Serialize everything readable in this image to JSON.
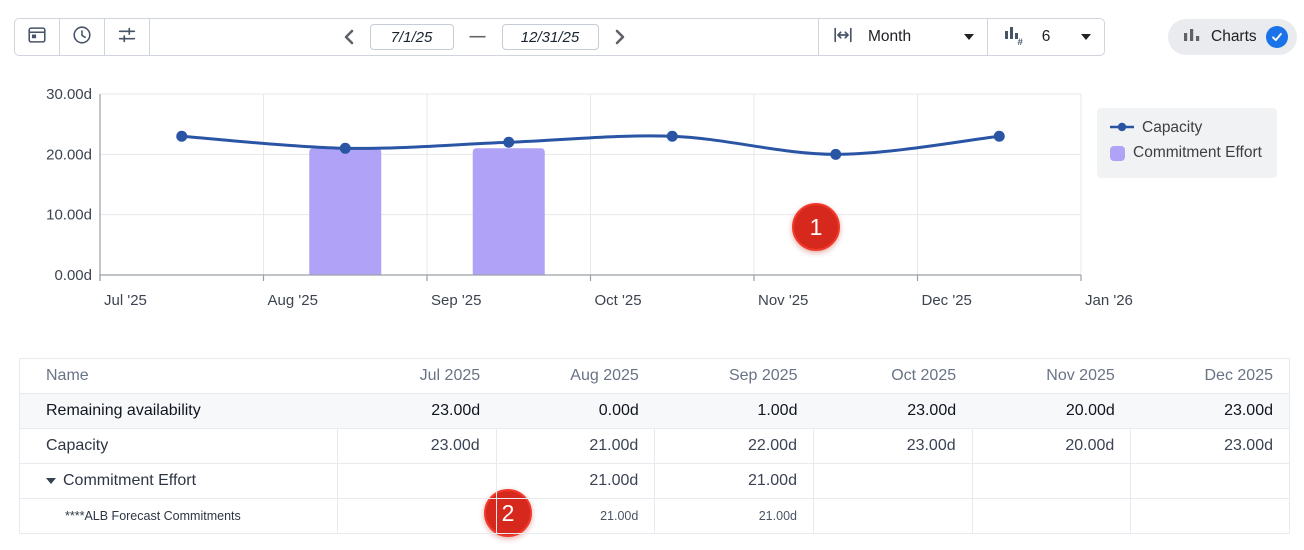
{
  "toolbar": {
    "date_start": "7/1/25",
    "date_end": "12/31/25",
    "range_separator": "—",
    "granularity": "Month",
    "bar_count": "6",
    "charts_label": "Charts"
  },
  "chart_data": {
    "type": "line",
    "x": [
      "Jul '25",
      "Aug '25",
      "Sep '25",
      "Oct '25",
      "Nov '25",
      "Dec '25"
    ],
    "x_axis_ticks": [
      "Jul '25",
      "Aug '25",
      "Sep '25",
      "Oct '25",
      "Nov '25",
      "Dec '25",
      "Jan '26"
    ],
    "y_ticks": [
      {
        "v": 30,
        "label": "30.00d"
      },
      {
        "v": 20,
        "label": "20.00d"
      },
      {
        "v": 10,
        "label": "10.00d"
      },
      {
        "v": 0,
        "label": "0.00d"
      }
    ],
    "ylim": [
      0,
      30
    ],
    "unit": "d",
    "grid": true,
    "legend_position": "right",
    "series": [
      {
        "name": "Capacity",
        "type": "line",
        "color": "#2a55a5",
        "values": [
          23,
          21,
          22,
          23,
          20,
          23
        ]
      },
      {
        "name": "Commitment Effort",
        "type": "bar",
        "color": "#b0a3f7",
        "values": [
          null,
          21,
          21,
          null,
          null,
          null
        ]
      }
    ]
  },
  "annotations": {
    "badge1": "1",
    "badge2": "2"
  },
  "table": {
    "columns": [
      "Name",
      "Jul 2025",
      "Aug 2025",
      "Sep 2025",
      "Oct 2025",
      "Nov 2025",
      "Dec 2025"
    ],
    "rows": [
      {
        "name": "Remaining availability",
        "values": [
          "23.00d",
          "0.00d",
          "1.00d",
          "23.00d",
          "20.00d",
          "23.00d"
        ]
      },
      {
        "name": "Capacity",
        "values": [
          "23.00d",
          "21.00d",
          "22.00d",
          "23.00d",
          "20.00d",
          "23.00d"
        ]
      },
      {
        "name": "Commitment Effort",
        "values": [
          "",
          "21.00d",
          "21.00d",
          "",
          "",
          ""
        ]
      },
      {
        "name": "****ALB Forecast Commitments",
        "values": [
          "",
          "21.00d",
          "21.00d",
          "",
          "",
          ""
        ]
      }
    ]
  }
}
